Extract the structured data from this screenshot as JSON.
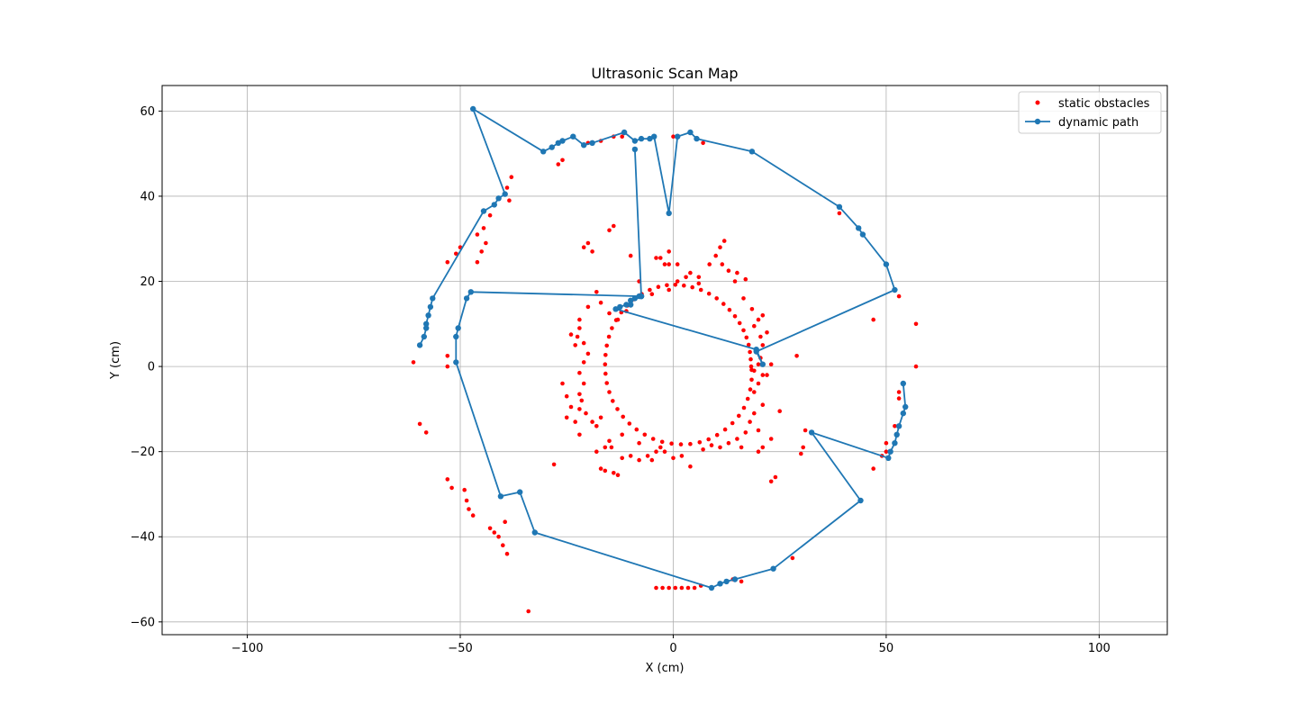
{
  "chart_data": {
    "type": "scatter",
    "title": "Ultrasonic Scan Map",
    "xlabel": "X (cm)",
    "ylabel": "Y (cm)",
    "xlim": [
      -120,
      116
    ],
    "ylim": [
      -63,
      66
    ],
    "xticks": [
      -100,
      -50,
      0,
      50,
      100
    ],
    "yticks": [
      -60,
      -40,
      -20,
      0,
      20,
      40,
      60
    ],
    "grid": true,
    "legend_position": "top-right",
    "colors": {
      "static": "#ff0000",
      "dynamic": "#1f77b4"
    },
    "series": [
      {
        "name": "static obstacles",
        "kind": "scatter",
        "points": [
          [
            -61,
            1
          ],
          [
            -59.5,
            -13.5
          ],
          [
            -58,
            -15.5
          ],
          [
            -53,
            2.5
          ],
          [
            -53,
            0
          ],
          [
            -53,
            -26.5
          ],
          [
            -52,
            -28.5
          ],
          [
            -49,
            -29
          ],
          [
            -48.5,
            -31.5
          ],
          [
            -48,
            -33.5
          ],
          [
            -47,
            -35
          ],
          [
            -43,
            -38
          ],
          [
            -42,
            -39
          ],
          [
            -41,
            -40
          ],
          [
            -40,
            -42
          ],
          [
            -39,
            -44
          ],
          [
            -39.5,
            -36.5
          ],
          [
            -34,
            -57.5
          ],
          [
            -53,
            24.5
          ],
          [
            -51,
            26.5
          ],
          [
            -50,
            28
          ],
          [
            -46,
            31
          ],
          [
            -44.5,
            32.5
          ],
          [
            -44,
            29
          ],
          [
            -45,
            27
          ],
          [
            -46,
            24.5
          ],
          [
            -38,
            44.5
          ],
          [
            -39,
            42
          ],
          [
            -38.5,
            39
          ],
          [
            -43,
            35.5
          ],
          [
            -28,
            -23
          ],
          [
            -27,
            47.5
          ],
          [
            -26,
            48.5
          ],
          [
            -21,
            28
          ],
          [
            -20,
            29
          ],
          [
            -19,
            27
          ],
          [
            -15,
            32
          ],
          [
            -14,
            33
          ],
          [
            -12,
            54
          ],
          [
            -14,
            54
          ],
          [
            -17,
            53
          ],
          [
            -20,
            52.5
          ],
          [
            0,
            54
          ],
          [
            4,
            55
          ],
          [
            7,
            52.5
          ],
          [
            -1,
            27
          ],
          [
            -3,
            25.5
          ],
          [
            -4,
            25.5
          ],
          [
            -10,
            26
          ],
          [
            -2,
            24
          ],
          [
            -1,
            24
          ],
          [
            1,
            24
          ],
          [
            39,
            36
          ],
          [
            47,
            11
          ],
          [
            53,
            16.5
          ],
          [
            57,
            10
          ],
          [
            57,
            0
          ],
          [
            29,
            2.5
          ],
          [
            25,
            -10.5
          ],
          [
            31,
            -15
          ],
          [
            30.5,
            -19
          ],
          [
            30,
            -20.5
          ],
          [
            28,
            -45
          ],
          [
            24,
            -26
          ],
          [
            23,
            -27
          ],
          [
            20,
            -20
          ],
          [
            21,
            -19
          ],
          [
            23,
            -17
          ],
          [
            20,
            -15
          ],
          [
            47,
            -24
          ],
          [
            53,
            -6
          ],
          [
            53,
            -7.5
          ],
          [
            52,
            -14
          ],
          [
            50,
            -18
          ],
          [
            50,
            -20
          ],
          [
            49,
            -21
          ],
          [
            -4,
            -52
          ],
          [
            -2.5,
            -52
          ],
          [
            -1,
            -52
          ],
          [
            0.5,
            -52
          ],
          [
            2,
            -52
          ],
          [
            3.5,
            -52
          ],
          [
            5,
            -52
          ],
          [
            6.5,
            -51.5
          ],
          [
            14,
            -50
          ],
          [
            16,
            -50.5
          ],
          [
            18.3,
            0
          ],
          [
            18.2,
            1.7
          ],
          [
            18.0,
            3.4
          ],
          [
            17.7,
            5.1
          ],
          [
            17.2,
            6.8
          ],
          [
            16.5,
            8.5
          ],
          [
            15.6,
            10.2
          ],
          [
            14.5,
            11.8
          ],
          [
            13.2,
            13.3
          ],
          [
            11.8,
            14.7
          ],
          [
            10.2,
            16.0
          ],
          [
            8.4,
            17.1
          ],
          [
            6.5,
            18.0
          ],
          [
            4.5,
            18.6
          ],
          [
            2.5,
            19.0
          ],
          [
            0.5,
            19.2
          ],
          [
            -1.5,
            19.1
          ],
          [
            -3.5,
            18.7
          ],
          [
            -5.5,
            18.0
          ],
          [
            -7.4,
            17.0
          ],
          [
            -9.2,
            15.8
          ],
          [
            -10.8,
            14.3
          ],
          [
            -12.2,
            12.7
          ],
          [
            -13.4,
            10.9
          ],
          [
            -14.4,
            9.0
          ],
          [
            -15.1,
            7.0
          ],
          [
            -15.6,
            4.9
          ],
          [
            -15.9,
            2.7
          ],
          [
            -16.0,
            0.5
          ],
          [
            -15.9,
            -1.7
          ],
          [
            -15.6,
            -3.9
          ],
          [
            -15.0,
            -6.0
          ],
          [
            -14.2,
            -8.1
          ],
          [
            -13.1,
            -10.0
          ],
          [
            -11.8,
            -11.8
          ],
          [
            -10.3,
            -13.4
          ],
          [
            -8.6,
            -14.8
          ],
          [
            -6.7,
            -16.0
          ],
          [
            -4.7,
            -17.0
          ],
          [
            -2.6,
            -17.7
          ],
          [
            -0.4,
            -18.1
          ],
          [
            1.8,
            -18.3
          ],
          [
            4.0,
            -18.2
          ],
          [
            6.2,
            -17.8
          ],
          [
            8.3,
            -17.1
          ],
          [
            10.3,
            -16.1
          ],
          [
            12.2,
            -14.8
          ],
          [
            13.9,
            -13.3
          ],
          [
            15.4,
            -11.6
          ],
          [
            16.6,
            -9.7
          ],
          [
            17.5,
            -7.6
          ],
          [
            18.1,
            -5.4
          ],
          [
            18.4,
            -3.1
          ],
          [
            18.4,
            -0.8
          ],
          [
            20,
            0.5
          ],
          [
            20.5,
            2
          ],
          [
            19.5,
            4
          ],
          [
            20.5,
            7
          ],
          [
            19,
            9.5
          ],
          [
            20,
            11
          ],
          [
            18.5,
            13.5
          ],
          [
            16.5,
            16
          ],
          [
            14.5,
            20
          ],
          [
            13,
            22.5
          ],
          [
            11.5,
            24
          ],
          [
            10,
            26
          ],
          [
            11,
            28
          ],
          [
            8.5,
            24
          ],
          [
            6,
            21
          ],
          [
            4,
            22
          ],
          [
            6,
            19.5
          ],
          [
            3,
            21
          ],
          [
            1,
            20
          ],
          [
            -1,
            18
          ],
          [
            -5,
            17
          ],
          [
            -8,
            20
          ],
          [
            -11,
            13
          ],
          [
            -13,
            11
          ],
          [
            -15,
            12.5
          ],
          [
            -17,
            15
          ],
          [
            -18,
            17.5
          ],
          [
            -20,
            14
          ],
          [
            -22,
            11
          ],
          [
            -22,
            9
          ],
          [
            -22.5,
            7
          ],
          [
            -23,
            5
          ],
          [
            -24,
            7.5
          ],
          [
            -21,
            5.5
          ],
          [
            -20,
            3
          ],
          [
            -21,
            1
          ],
          [
            -22,
            -1.5
          ],
          [
            -21,
            -4
          ],
          [
            -22,
            -6.5
          ],
          [
            -21.5,
            -8
          ],
          [
            -22,
            -10
          ],
          [
            -20.5,
            -11
          ],
          [
            -19,
            -13
          ],
          [
            -18,
            -14
          ],
          [
            -17,
            -12
          ],
          [
            -15,
            -17.5
          ],
          [
            -14.5,
            -19
          ],
          [
            -12,
            -21.5
          ],
          [
            -14,
            -25
          ],
          [
            -17,
            -24
          ],
          [
            -16,
            -24.5
          ],
          [
            -13,
            -25.5
          ],
          [
            -10,
            -21
          ],
          [
            -8,
            -22
          ],
          [
            -6,
            -21
          ],
          [
            -5,
            -22
          ],
          [
            -4,
            -20
          ],
          [
            -3,
            -19
          ],
          [
            -2,
            -20
          ],
          [
            0,
            -21.5
          ],
          [
            2,
            -21
          ],
          [
            4,
            -23.5
          ],
          [
            7,
            -19.5
          ],
          [
            9,
            -18.5
          ],
          [
            11,
            -19
          ],
          [
            13,
            -18
          ],
          [
            15,
            -17
          ],
          [
            16,
            -19
          ],
          [
            17,
            -15.5
          ],
          [
            18,
            -13
          ],
          [
            19,
            -11
          ],
          [
            21,
            -9
          ],
          [
            19,
            -6
          ],
          [
            20,
            -4
          ],
          [
            21,
            -2
          ],
          [
            19,
            -1
          ],
          [
            -26,
            -4
          ],
          [
            -25,
            -7
          ],
          [
            -24,
            -9.5
          ],
          [
            -25,
            -12
          ],
          [
            -23,
            -13
          ],
          [
            -22,
            -16
          ],
          [
            -18,
            -20
          ],
          [
            -16,
            -19
          ],
          [
            -12,
            -16
          ],
          [
            -8,
            -18
          ],
          [
            22,
            -2
          ],
          [
            23,
            0.5
          ],
          [
            21,
            5
          ],
          [
            22,
            8
          ],
          [
            21,
            12
          ],
          [
            17,
            20.5
          ],
          [
            15,
            22
          ],
          [
            12,
            29.5
          ]
        ]
      },
      {
        "name": "dynamic path",
        "kind": "line",
        "points": [
          [
            -59.5,
            5
          ],
          [
            -58.5,
            7
          ],
          [
            -58,
            9
          ],
          [
            -58,
            10
          ],
          [
            -57.5,
            12
          ],
          [
            -57,
            14
          ],
          [
            -56.5,
            16
          ],
          [
            -44.5,
            36.5
          ],
          [
            -42,
            38
          ],
          [
            -41,
            39.5
          ],
          [
            -39.5,
            40.5
          ],
          [
            -47,
            60.5
          ],
          [
            -30.5,
            50.5
          ],
          [
            -28.5,
            51.5
          ],
          [
            -27,
            52.5
          ],
          [
            -26,
            53
          ],
          [
            -23.5,
            54
          ],
          [
            -21,
            52
          ],
          [
            -19,
            52.5
          ],
          [
            -11.5,
            55
          ],
          [
            -9,
            53
          ],
          [
            -7.5,
            53.5
          ],
          [
            -5.5,
            53.5
          ],
          [
            -4.5,
            54
          ],
          [
            -1,
            36
          ],
          [
            1,
            54
          ],
          [
            4,
            55
          ],
          [
            5.5,
            53.5
          ],
          [
            18.5,
            50.5
          ],
          [
            39,
            37.5
          ],
          [
            43.5,
            32.5
          ],
          [
            44.5,
            31
          ],
          [
            50,
            24
          ],
          [
            52,
            18
          ],
          [
            19.5,
            3.5
          ],
          [
            21,
            0.5
          ],
          [
            19.5,
            4
          ],
          [
            -13.5,
            13.5
          ],
          [
            -12.5,
            14
          ],
          [
            -11,
            14.5
          ],
          [
            -10,
            14.5
          ],
          [
            -10,
            15.5
          ],
          [
            -9,
            16
          ],
          [
            -8,
            16.5
          ],
          [
            -7.5,
            16.5
          ],
          [
            -7.5,
            16.5
          ],
          [
            -9,
            51
          ],
          [
            -7.5,
            16.5
          ],
          [
            -47.5,
            17.5
          ],
          [
            -48.5,
            16
          ],
          [
            -50.5,
            9
          ],
          [
            -51,
            7
          ],
          [
            -51,
            1
          ],
          [
            -40.5,
            -30.5
          ],
          [
            -36,
            -29.5
          ],
          [
            -32.5,
            -39
          ],
          [
            9,
            -52
          ],
          [
            11,
            -51
          ],
          [
            12.5,
            -50.5
          ],
          [
            14.5,
            -50
          ],
          [
            23.5,
            -47.5
          ],
          [
            44,
            -31.5
          ],
          [
            32.5,
            -15.5
          ],
          [
            50.5,
            -21.5
          ],
          [
            51,
            -20
          ],
          [
            52,
            -18
          ],
          [
            52.5,
            -16
          ],
          [
            53,
            -14
          ],
          [
            54,
            -11
          ],
          [
            54.5,
            -9.5
          ],
          [
            54,
            -4
          ]
        ]
      }
    ]
  }
}
